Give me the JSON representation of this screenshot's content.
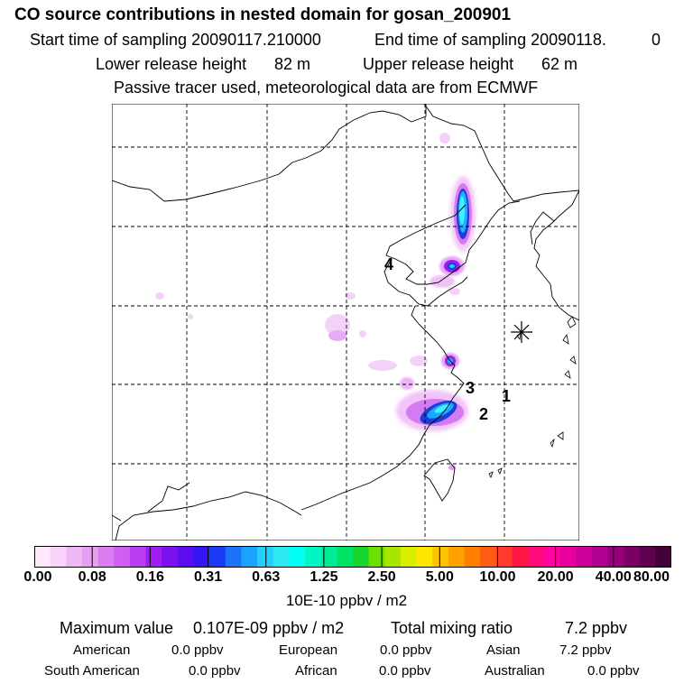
{
  "header": {
    "title": "CO  source contributions in nested domain for gosan_200901",
    "start_label": "Start time of sampling 20090117.210000",
    "end_label": "End time of sampling 20090118.",
    "end_value": "0",
    "lower_label": "Lower release height",
    "lower_value": "82 m",
    "upper_label": "Upper release height",
    "upper_value": "62 m",
    "note": "Passive tracer used, meteorological data are from ECMWF"
  },
  "map": {
    "receptor": "gosan",
    "region_labels": [
      "1",
      "2",
      "3",
      "4"
    ],
    "plume_colors": [
      "#f4c6f7",
      "#e58cf5",
      "#c44cf0",
      "#8a2bd8",
      "#1b3cd6",
      "#1fa8ff",
      "#3ff2ff"
    ]
  },
  "colorbar": {
    "colors": [
      "#fde8fd",
      "#f8d2f8",
      "#efb8f5",
      "#e79ef3",
      "#dd7df2",
      "#cf5ef1",
      "#bb3ef0",
      "#9f1df0",
      "#7d10ee",
      "#5b0cf1",
      "#3516f2",
      "#1b3af6",
      "#1b73f9",
      "#19a3fc",
      "#22cfff",
      "#2de8f1",
      "#00fff2",
      "#00f6c4",
      "#00ec96",
      "#00e266",
      "#18d72a",
      "#6cde00",
      "#a6e600",
      "#d8ee00",
      "#ffe600",
      "#ffc400",
      "#ffa200",
      "#ff7f00",
      "#ff5c13",
      "#ff3b2b",
      "#ff1744",
      "#ff0a7a",
      "#ff04a1",
      "#e8009f",
      "#cc0098",
      "#b20090",
      "#96007c",
      "#7b0066",
      "#5f0050",
      "#440038"
    ],
    "tick_labels": [
      "0.00",
      "0.08",
      "0.16",
      "0.31",
      "0.63",
      "1.25",
      "2.50",
      "5.00",
      "10.00",
      "20.00",
      "40.00",
      "80.00"
    ],
    "unit": "10E-10 ppbv / m2"
  },
  "stats": {
    "max_label": "Maximum value",
    "max_value": "0.107E-09 ppbv / m2",
    "total_label": "Total mixing ratio",
    "total_value": "7.2 ppbv",
    "regions": [
      {
        "name": "American",
        "value": "0.0 ppbv"
      },
      {
        "name": "European",
        "value": "0.0 ppbv"
      },
      {
        "name": "Asian",
        "value": "7.2 ppbv"
      },
      {
        "name": "South American",
        "value": "0.0 ppbv"
      },
      {
        "name": "African",
        "value": "0.0 ppbv"
      },
      {
        "name": "Australian",
        "value": "0.0 ppbv"
      }
    ]
  }
}
